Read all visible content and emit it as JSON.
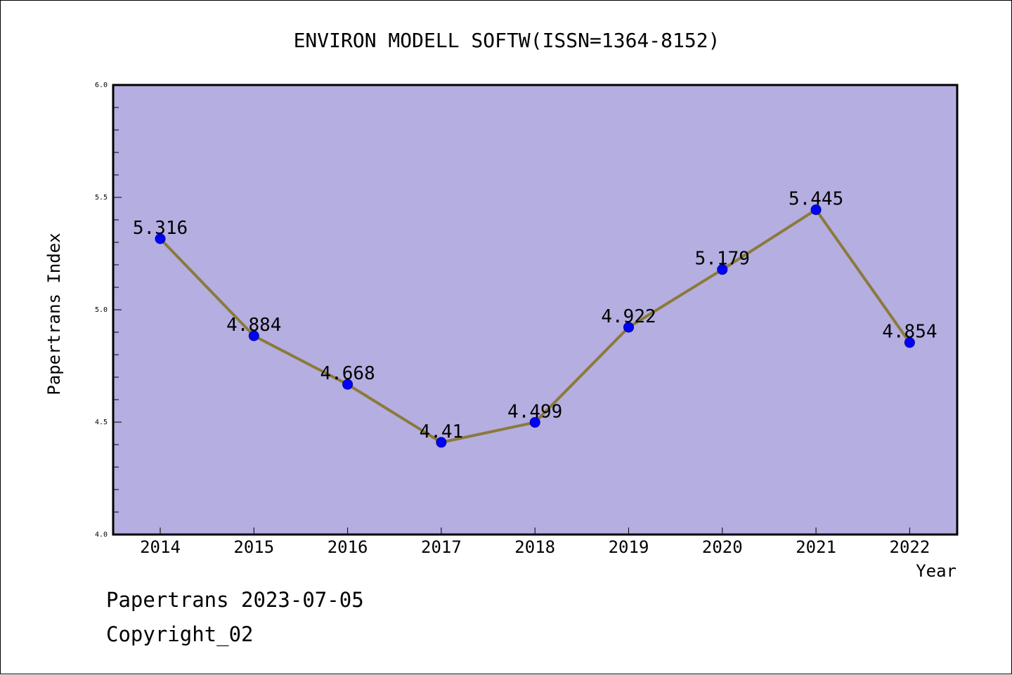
{
  "chart_data": {
    "type": "line",
    "title": "ENVIRON MODELL SOFTW(ISSN=1364-8152)",
    "xlabel": "Year",
    "ylabel": "Papertrans Index",
    "categories": [
      "2014",
      "2015",
      "2016",
      "2017",
      "2018",
      "2019",
      "2020",
      "2021",
      "2022"
    ],
    "series": [
      {
        "values": [
          5.316,
          4.884,
          4.668,
          4.41,
          4.499,
          4.922,
          5.179,
          5.445,
          4.854
        ],
        "labels": [
          "5.316",
          "4.884",
          "4.668",
          "4.41",
          "4.499",
          "4.922",
          "5.179",
          "5.445",
          "4.854"
        ]
      }
    ],
    "ylim": [
      4.0,
      6.0
    ],
    "yticks": [
      4.0,
      4.5,
      5.0,
      5.5,
      6.0
    ],
    "ytick_labels": [
      "4.0",
      "4.5",
      "5.0",
      "5.5",
      "6.0"
    ],
    "grid": false,
    "colors": {
      "plot_background": "#b4aee1",
      "line": "#8b7a3a",
      "marker": "#0000ff",
      "frame": "#000000"
    }
  },
  "footer": {
    "line1": "Papertrans 2023-07-05",
    "line2": "Copyright_02"
  }
}
